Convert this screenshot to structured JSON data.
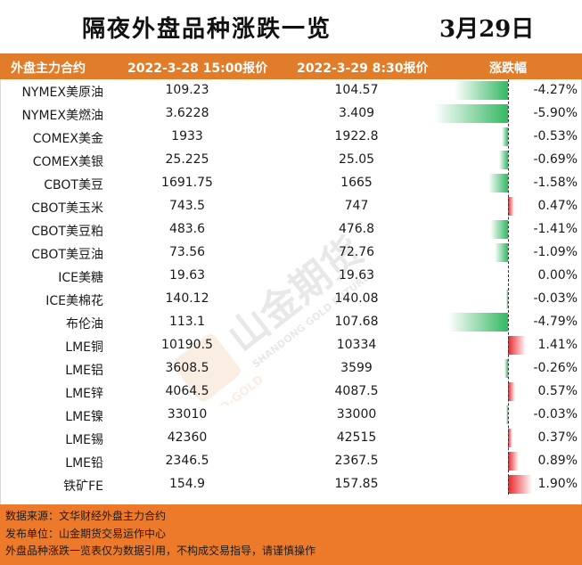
{
  "title": "隔夜外盘品种涨跌一览",
  "date": "3月29日",
  "header": {
    "col_name": "外盘主力合约",
    "col_p1": "2022-3-28 15:00报价",
    "col_p2": "2022-3-29 8:30报价",
    "col_change": "涨跌幅"
  },
  "rows": [
    {
      "name": "NYMEX美原油",
      "p1": "109.23",
      "p2": "104.57",
      "change": "-4.27%",
      "pct": -4.27
    },
    {
      "name": "NYMEX美燃油",
      "p1": "3.6228",
      "p2": "3.409",
      "change": "-5.90%",
      "pct": -5.9
    },
    {
      "name": "COMEX美金",
      "p1": "1933",
      "p2": "1922.8",
      "change": "-0.53%",
      "pct": -0.53
    },
    {
      "name": "COMEX美银",
      "p1": "25.225",
      "p2": "25.05",
      "change": "-0.69%",
      "pct": -0.69
    },
    {
      "name": "CBOT美豆",
      "p1": "1691.75",
      "p2": "1665",
      "change": "-1.58%",
      "pct": -1.58
    },
    {
      "name": "CBOT美玉米",
      "p1": "743.5",
      "p2": "747",
      "change": "0.47%",
      "pct": 0.47
    },
    {
      "name": "CBOT美豆粕",
      "p1": "483.6",
      "p2": "476.8",
      "change": "-1.41%",
      "pct": -1.41
    },
    {
      "name": "CBOT美豆油",
      "p1": "73.56",
      "p2": "72.76",
      "change": "-1.09%",
      "pct": -1.09
    },
    {
      "name": "ICE美糖",
      "p1": "19.63",
      "p2": "19.63",
      "change": "0.00%",
      "pct": 0.0
    },
    {
      "name": "ICE美棉花",
      "p1": "140.12",
      "p2": "140.08",
      "change": "-0.03%",
      "pct": -0.03
    },
    {
      "name": "布伦油",
      "p1": "113.1",
      "p2": "107.68",
      "change": "-4.79%",
      "pct": -4.79
    },
    {
      "name": "LME铜",
      "p1": "10190.5",
      "p2": "10334",
      "change": "1.41%",
      "pct": 1.41
    },
    {
      "name": "LME铝",
      "p1": "3608.5",
      "p2": "3599",
      "change": "-0.26%",
      "pct": -0.26
    },
    {
      "name": "LME锌",
      "p1": "4064.5",
      "p2": "4087.5",
      "change": "0.57%",
      "pct": 0.57
    },
    {
      "name": "LME镍",
      "p1": "33010",
      "p2": "33000",
      "change": "-0.03%",
      "pct": -0.03
    },
    {
      "name": "LME锡",
      "p1": "42360",
      "p2": "42515",
      "change": "0.37%",
      "pct": 0.37
    },
    {
      "name": "LME铅",
      "p1": "2346.5",
      "p2": "2367.5",
      "change": "0.89%",
      "pct": 0.89
    },
    {
      "name": "铁矿FE",
      "p1": "154.9",
      "p2": "157.85",
      "change": "1.90%",
      "pct": 1.9
    }
  ],
  "colors": {
    "header_bg": "#e07c2a",
    "footer_bg": "#ec7a2a",
    "negative_bar": "#33b862",
    "positive_bar": "#e8262b"
  },
  "watermark": {
    "brand_cn": "山金期货",
    "brand_en": "SHANDONG GOLD FUTURES",
    "logo_text": "SD-GOLD"
  },
  "footer": {
    "source": "数据来源：文华财经外盘主力合约",
    "publisher": "发布单位：山金期货交易运作中心",
    "disclaimer": "外盘品种涨跌一览表仅为数据引用，不构成交易指导，请谨慎操作"
  }
}
